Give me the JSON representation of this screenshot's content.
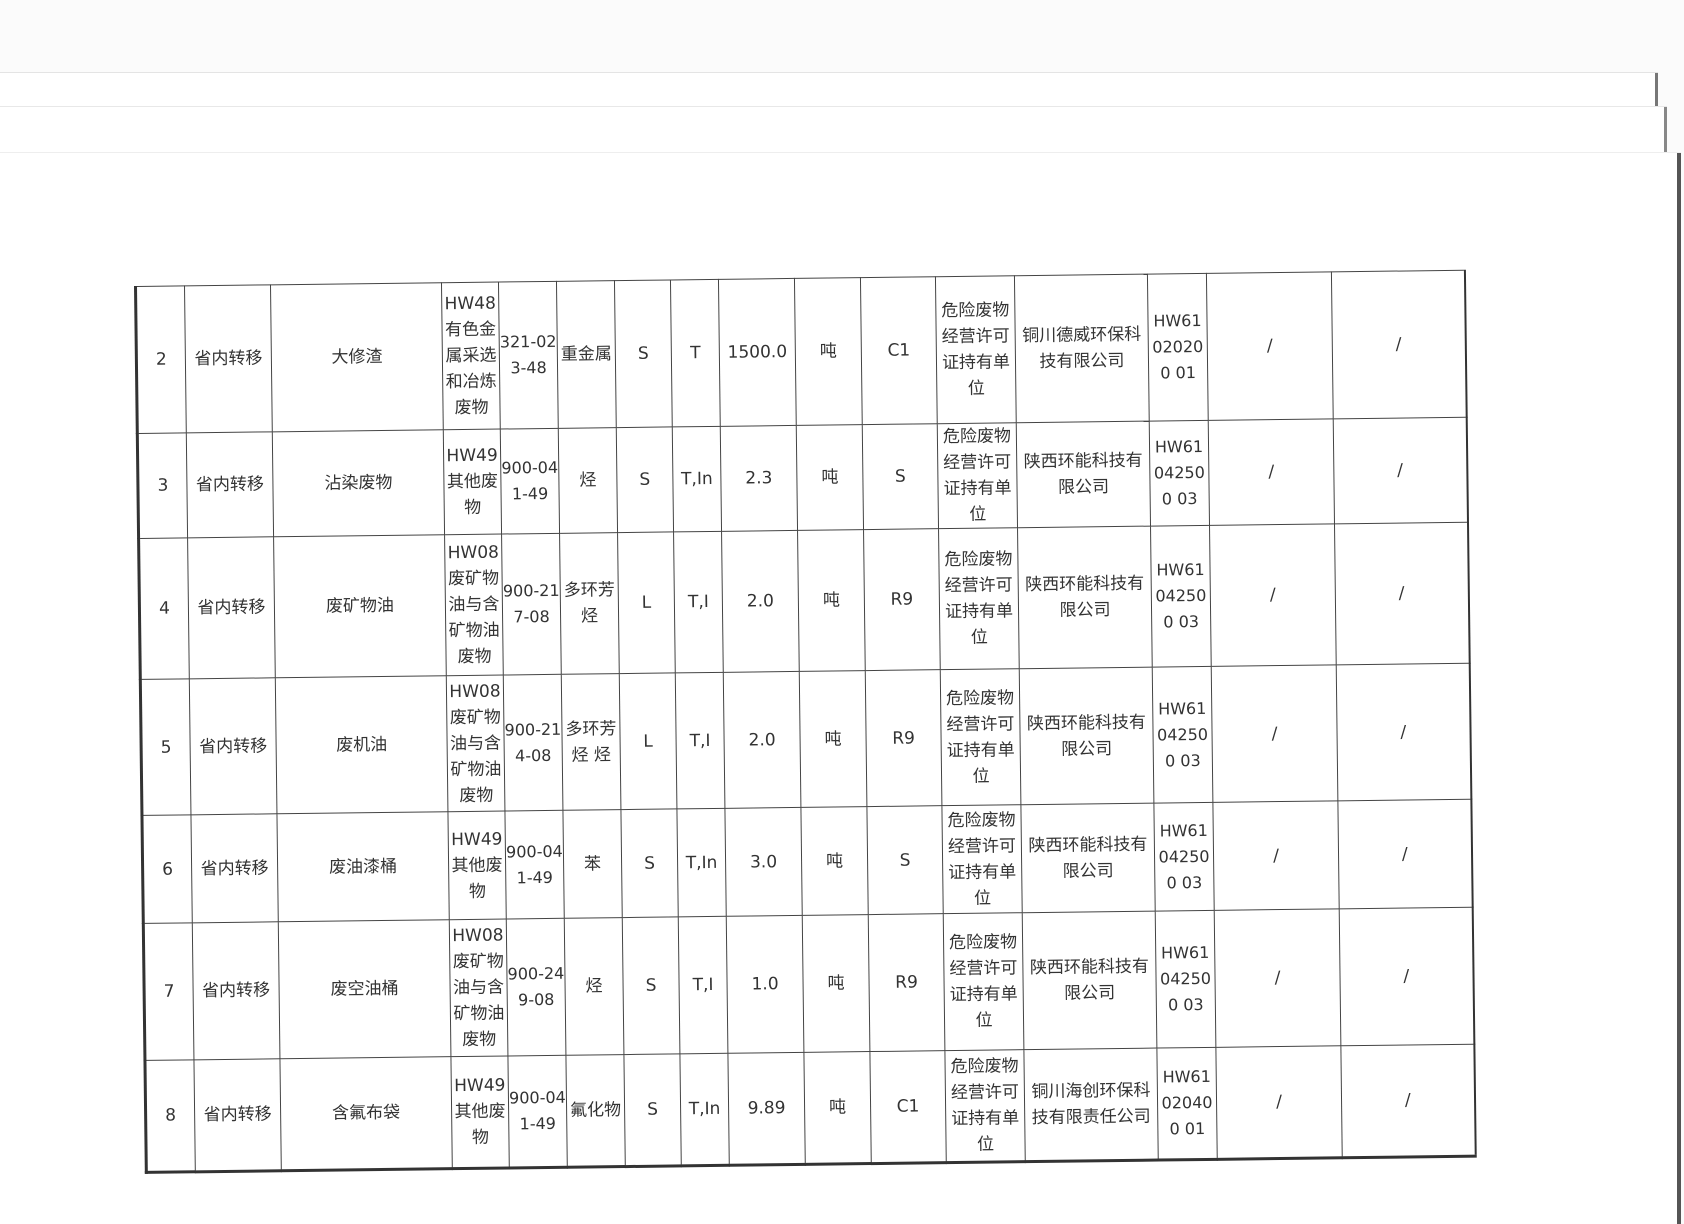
{
  "table": {
    "rows": [
      {
        "no": "2",
        "transfer": "省内转移",
        "name": "大修渣",
        "category": "HW48有色金属采选和冶炼废物",
        "code": "321-023-48",
        "hazard": "重金属",
        "form": "S",
        "property": "T",
        "amount": "1500.0",
        "unit": "吨",
        "disposal": "C1",
        "receiver_type": "危险废物经营许可证持有单位",
        "receiver": "铜川德威环保科技有限公司",
        "license": "HW61020200 01",
        "col15": "/",
        "col16": "/"
      },
      {
        "no": "3",
        "transfer": "省内转移",
        "name": "沾染废物",
        "category": "HW49其他废物",
        "code": "900-041-49",
        "hazard": "烃",
        "form": "S",
        "property": "T,In",
        "amount": "2.3",
        "unit": "吨",
        "disposal": "S",
        "receiver_type": "危险废物经营许可证持有单位",
        "receiver": "陕西环能科技有限公司",
        "license": "HW61042500 03",
        "col15": "/",
        "col16": "/"
      },
      {
        "no": "4",
        "transfer": "省内转移",
        "name": "废矿物油",
        "category": "HW08废矿物油与含矿物油废物",
        "code": "900-217-08",
        "hazard": "多环芳烃",
        "form": "L",
        "property": "T,I",
        "amount": "2.0",
        "unit": "吨",
        "disposal": "R9",
        "receiver_type": "危险废物经营许可证持有单位",
        "receiver": "陕西环能科技有限公司",
        "license": "HW61042500 03",
        "col15": "/",
        "col16": "/"
      },
      {
        "no": "5",
        "transfer": "省内转移",
        "name": "废机油",
        "category": "HW08废矿物油与含矿物油废物",
        "code": "900-214-08",
        "hazard": "多环芳烃 烃",
        "form": "L",
        "property": "T,I",
        "amount": "2.0",
        "unit": "吨",
        "disposal": "R9",
        "receiver_type": "危险废物经营许可证持有单位",
        "receiver": "陕西环能科技有限公司",
        "license": "HW61042500 03",
        "col15": "/",
        "col16": "/"
      },
      {
        "no": "6",
        "transfer": "省内转移",
        "name": "废油漆桶",
        "category": "HW49其他废物",
        "code": "900-041-49",
        "hazard": "苯",
        "form": "S",
        "property": "T,In",
        "amount": "3.0",
        "unit": "吨",
        "disposal": "S",
        "receiver_type": "危险废物经营许可证持有单位",
        "receiver": "陕西环能科技有限公司",
        "license": "HW61042500 03",
        "col15": "/",
        "col16": "/"
      },
      {
        "no": "7",
        "transfer": "省内转移",
        "name": "废空油桶",
        "category": "HW08废矿物油与含矿物油废物",
        "code": "900-249-08",
        "hazard": "烃",
        "form": "S",
        "property": "T,I",
        "amount": "1.0",
        "unit": "吨",
        "disposal": "R9",
        "receiver_type": "危险废物经营许可证持有单位",
        "receiver": "陕西环能科技有限公司",
        "license": "HW61042500 03",
        "col15": "/",
        "col16": "/"
      },
      {
        "no": "8",
        "transfer": "省内转移",
        "name": "含氟布袋",
        "category": "HW49其他废物",
        "code": "900-041-49",
        "hazard": "氟化物",
        "form": "S",
        "property": "T,In",
        "amount": "9.89",
        "unit": "吨",
        "disposal": "C1",
        "receiver_type": "危险废物经营许可证持有单位",
        "receiver": "铜川海创环保科技有限责任公司",
        "license": "HW61020400 01",
        "col15": "/",
        "col16": "/"
      }
    ]
  }
}
